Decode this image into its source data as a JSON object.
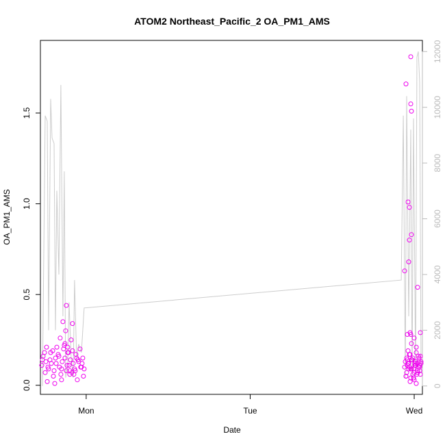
{
  "chart_data": {
    "type": "scatter",
    "title": "ATOM2 Northeast_Pacific_2 OA_PM1_AMS",
    "xlabel": "Date",
    "ylabel": "OA_PM1_AMS",
    "x_ticks": [
      "Mon",
      "Tue",
      "Wed"
    ],
    "x_tick_values_hours": [
      24,
      48,
      72
    ],
    "xlim_hours": [
      17.3,
      73.2
    ],
    "ylim_left": [
      -0.05,
      1.9
    ],
    "y_ticks_left": [
      "0.0",
      "0.5",
      "1.0",
      "1.5"
    ],
    "y_tick_values_left": [
      0,
      0.5,
      1,
      1.5
    ],
    "ylim_right": [
      -300,
      12400
    ],
    "y_ticks_right": [
      "0",
      "2000",
      "4000",
      "6000",
      "8000",
      "10000",
      "12000"
    ],
    "y_tick_values_right": [
      0,
      2000,
      4000,
      6000,
      8000,
      10000,
      12000
    ],
    "colors": {
      "points": "#ee00ee",
      "line": "#cccccc",
      "right_axis": "#bbbbbb",
      "axis": "#000000"
    },
    "series": [
      {
        "marker": "circle",
        "axis": "left",
        "color": "#ee00ee",
        "x": [
          17.5,
          17.7,
          17.9,
          18.1,
          18.3,
          18.5,
          18.7,
          18.9,
          19.1,
          19.3,
          19.5,
          19.7,
          19.9,
          20.1,
          20.3,
          20.5,
          20.7,
          20.9,
          21.1,
          21.3,
          21.5,
          21.7,
          21.9,
          22.1,
          22.3,
          22.5,
          22.7,
          22.9,
          23.1,
          23.3,
          23.5,
          23.7,
          17.6,
          18.0,
          18.4,
          18.8,
          19.2,
          19.6,
          20.0,
          20.4,
          20.8,
          21.2,
          21.6,
          22.0,
          22.4,
          22.8,
          23.2,
          23.6,
          20.2,
          20.6,
          21.0,
          21.4,
          21.8,
          20.9,
          21.3,
          21.1,
          22.0,
          22.6,
          23.4,
          18.2,
          19.4,
          20.4,
          21.6,
          22.2,
          70.9,
          71.1,
          71.3,
          71.5,
          71.7,
          71.9,
          72.1,
          72.3,
          72.5,
          72.7,
          72.9,
          70.6,
          70.8,
          71.0,
          71.2,
          71.4,
          71.6,
          71.8,
          72.0,
          72.2,
          72.4,
          72.6,
          72.8,
          73.0,
          70.7,
          70.9,
          71.1,
          71.3,
          71.5,
          71.7,
          71.9,
          72.1,
          72.3,
          72.5,
          72.7,
          71.0,
          71.4,
          71.8,
          72.2,
          72.6,
          70.8,
          71.2,
          71.6,
          72.0,
          72.4,
          72.8,
          70.8,
          71.1,
          71.3,
          71.2,
          71.5,
          71.6,
          71.6,
          71.3,
          71.4,
          71.5,
          71.6,
          72.0,
          73.0,
          72.9,
          72.9,
          70.6,
          71.0,
          71.5,
          72.3,
          72.8,
          71.9,
          72.5
        ],
        "y": [
          0.11,
          0.16,
          0.18,
          0.13,
          0.02,
          0.09,
          0.14,
          0.12,
          0.19,
          0.08,
          0.15,
          0.21,
          0.17,
          0.1,
          0.06,
          0.13,
          0.2,
          0.15,
          0.08,
          0.18,
          0.11,
          0.14,
          0.07,
          0.12,
          0.09,
          0.17,
          0.03,
          0.13,
          0.2,
          0.1,
          0.15,
          0.09,
          0.14,
          0.07,
          0.1,
          0.18,
          0.05,
          0.12,
          0.16,
          0.09,
          0.22,
          0.11,
          0.06,
          0.19,
          0.08,
          0.14,
          0.1,
          0.05,
          0.26,
          0.35,
          0.3,
          0.18,
          0.25,
          0.23,
          0.21,
          0.44,
          0.34,
          0.15,
          0.12,
          0.21,
          0.01,
          0.03,
          0.08,
          0.06,
          0.15,
          0.12,
          0.17,
          0.09,
          0.14,
          0.04,
          0.11,
          0.18,
          0.07,
          0.13,
          0.16,
          0.1,
          0.05,
          0.14,
          0.12,
          0.02,
          0.09,
          0.15,
          0.03,
          0.11,
          0.06,
          0.16,
          0.08,
          0.12,
          0.13,
          0.07,
          0.19,
          0.1,
          0.04,
          0.14,
          0.09,
          0.12,
          0.01,
          0.08,
          0.15,
          0.11,
          0.17,
          0.06,
          0.13,
          0.1,
          0.05,
          0.09,
          0.14,
          0.07,
          0.12,
          0.11,
          1.66,
          1.01,
          0.8,
          0.68,
          1.55,
          1.51,
          0.83,
          0.98,
          0.29,
          0.28,
          0.23,
          0.26,
          0.13,
          0.29,
          0.06,
          0.63,
          0.28,
          1.81,
          0.21,
          0.1,
          0.04,
          0.54
        ]
      },
      {
        "marker": "line",
        "axis": "right",
        "color": "#cccccc",
        "x": [
          17.6,
          18.0,
          18.3,
          18.5,
          18.8,
          19.0,
          19.3,
          19.5,
          19.7,
          20.0,
          20.3,
          20.6,
          20.8,
          21.0,
          21.3,
          21.5,
          21.8,
          22.1,
          22.3,
          22.6,
          22.9,
          23.3,
          23.7,
          70.1,
          70.4,
          70.7,
          70.9,
          71.2,
          71.5,
          71.7,
          71.9,
          72.2,
          72.4,
          72.6,
          72.8,
          73.0
        ],
        "y": [
          0,
          9700,
          9500,
          2000,
          10300,
          8900,
          8700,
          2000,
          7000,
          4000,
          10800,
          2500,
          7700,
          300,
          800,
          3000,
          1000,
          300,
          3800,
          1000,
          1500,
          1200,
          2800,
          3800,
          9700,
          300,
          10400,
          2500,
          9200,
          300,
          9600,
          400,
          11800,
          12000,
          10900,
          600
        ]
      }
    ]
  }
}
